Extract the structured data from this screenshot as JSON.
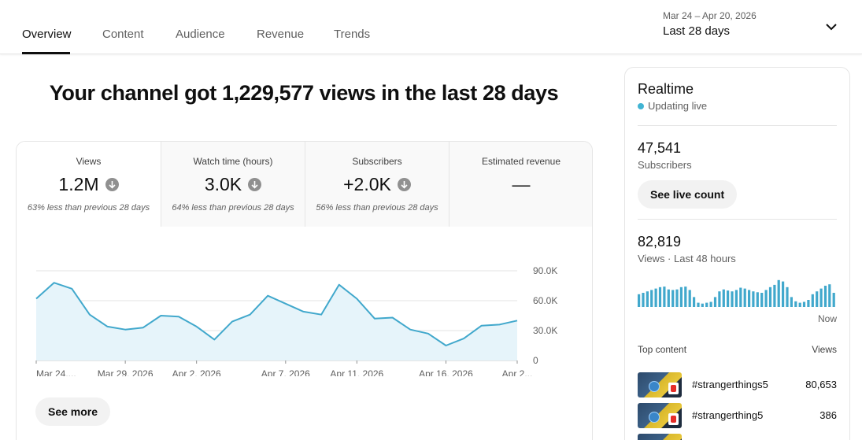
{
  "tabs": [
    {
      "label": "Overview",
      "active": true
    },
    {
      "label": "Content",
      "active": false
    },
    {
      "label": "Audience",
      "active": false
    },
    {
      "label": "Revenue",
      "active": false
    },
    {
      "label": "Trends",
      "active": false
    }
  ],
  "date_range": {
    "dates": "Mar 24 – Apr 20, 2026",
    "label": "Last 28 days"
  },
  "headline": "Your channel got 1,229,577 views in the last 28 days",
  "metrics": [
    {
      "label": "Views",
      "value": "1.2M",
      "trend": "down",
      "note": "63% less than previous 28 days"
    },
    {
      "label": "Watch time (hours)",
      "value": "3.0K",
      "trend": "down",
      "note": "64% less than previous 28 days"
    },
    {
      "label": "Subscribers",
      "value": "+2.0K",
      "trend": "down",
      "note": "56% less than previous 28 days"
    },
    {
      "label": "Estimated revenue",
      "value": "—",
      "note": ""
    }
  ],
  "see_more_label": "See more",
  "chart_data": {
    "type": "area",
    "series": [
      {
        "values": [
          62000,
          78000,
          72000,
          46000,
          34000,
          31000,
          33000,
          45000,
          44000,
          34000,
          21000,
          39000,
          46000,
          65000,
          57000,
          49000,
          46000,
          76000,
          62000,
          42000,
          43000,
          31000,
          27000,
          15000,
          22000,
          35000,
          36000,
          40000
        ]
      }
    ],
    "x_start": "Mar 24, 2026",
    "x_end": "Apr 20, 2026",
    "x_tick_labels": [
      "Mar 24,...",
      "Mar 29, 2026",
      "Apr 2, 2026",
      "Apr 7, 2026",
      "Apr 11, 2026",
      "Apr 16, 2026",
      "Apr 2..."
    ],
    "x_tick_dates": [
      "Mar 24, 2026",
      "Mar 29, 2026",
      "Apr 2, 2026",
      "Apr 7, 2026",
      "Apr 11, 2026",
      "Apr 16, 2026",
      "Apr 20, 2026"
    ],
    "y_tick_labels": [
      "0",
      "30.0K",
      "60.0K",
      "90.0K"
    ],
    "y_ticks": [
      0,
      30000,
      60000,
      90000
    ],
    "ylim": [
      0,
      90000
    ],
    "grid": true,
    "line_color": "#41a8cc",
    "fill_color": "#e6f4fa"
  },
  "realtime": {
    "title": "Realtime",
    "status": "Updating live",
    "subscribers": {
      "value": "47,541",
      "label": "Subscribers"
    },
    "live_count_label": "See live count",
    "views": {
      "value": "82,819",
      "label": "Views · Last 48 hours"
    },
    "now_label": "Now",
    "bar_color": "#41a8cc",
    "hourly_bars": [
      0.45,
      0.5,
      0.55,
      0.6,
      0.65,
      0.7,
      0.72,
      0.62,
      0.6,
      0.62,
      0.7,
      0.72,
      0.6,
      0.35,
      0.15,
      0.12,
      0.15,
      0.18,
      0.35,
      0.55,
      0.62,
      0.58,
      0.55,
      0.6,
      0.68,
      0.65,
      0.6,
      0.55,
      0.52,
      0.5,
      0.6,
      0.7,
      0.78,
      0.95,
      0.9,
      0.7,
      0.35,
      0.2,
      0.15,
      0.18,
      0.25,
      0.45,
      0.55,
      0.65,
      0.75,
      0.8,
      0.5
    ],
    "top_content": {
      "header_left": "Top content",
      "header_right": "Views",
      "items": [
        {
          "title": "#strangerthings5",
          "views": "80,653"
        },
        {
          "title": "#strangerthing5",
          "views": "386"
        },
        {
          "title": "",
          "views": ""
        }
      ]
    }
  }
}
